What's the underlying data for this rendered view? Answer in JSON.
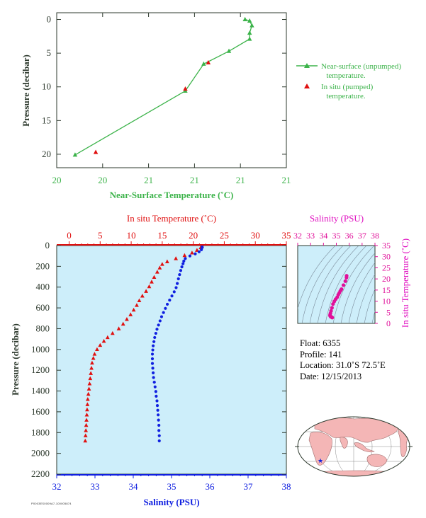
{
  "colors": {
    "green": "#3cb34a",
    "red": "#e01010",
    "blue": "#1020e0",
    "magenta": "#e0109a",
    "axis_dark": "#2e3a2e",
    "plot_bg": "#cdeefa",
    "land": "#f4b6b6",
    "ocean": "#ffffff"
  },
  "chart_data": [
    {
      "id": "near_surface",
      "type": "line",
      "xlabel": "Near-Surface Temperature (˚C)",
      "ylabel": "Pressure (decibar)",
      "xlim": [
        20.0,
        21.0
      ],
      "ylim": [
        22,
        -1
      ],
      "y_inverted": true,
      "x_tick_labels": [
        "20",
        "20",
        "21",
        "21",
        "21",
        "21"
      ],
      "y_ticks": [
        0,
        5,
        10,
        15,
        20
      ],
      "legend_position": "right",
      "series": [
        {
          "name": "Near-surface (unpumped) temperature.",
          "marker": "triangle",
          "line": true,
          "color": "green",
          "points": [
            [
              20.82,
              0.0
            ],
            [
              20.84,
              0.2
            ],
            [
              20.85,
              0.9
            ],
            [
              20.84,
              2.0
            ],
            [
              20.84,
              2.9
            ],
            [
              20.75,
              4.7
            ],
            [
              20.64,
              6.6
            ],
            [
              20.56,
              10.6
            ],
            [
              20.08,
              20.1
            ]
          ]
        },
        {
          "name": "In situ (pumped) temperature.",
          "marker": "triangle",
          "line": false,
          "color": "red",
          "points": [
            [
              20.66,
              6.4
            ],
            [
              20.56,
              10.3
            ],
            [
              20.17,
              19.7
            ]
          ]
        }
      ]
    },
    {
      "id": "profile",
      "type": "scatter",
      "ylabel": "Pressure (decibar)",
      "ylim": [
        2200,
        0
      ],
      "y_inverted": true,
      "y_ticks": [
        0,
        200,
        400,
        600,
        800,
        1000,
        1200,
        1400,
        1600,
        1800,
        2000,
        2200
      ],
      "top_axis": {
        "label": "In situ Temperature (˚C)",
        "range": [
          -2,
          35
        ],
        "ticks": [
          0,
          5,
          10,
          15,
          20,
          25,
          30,
          35
        ],
        "color": "red"
      },
      "bottom_axis": {
        "label": "Salinity (PSU)",
        "range": [
          32,
          38
        ],
        "ticks": [
          32,
          33,
          34,
          35,
          36,
          37,
          38
        ],
        "color": "blue"
      },
      "series": [
        {
          "name": "In situ Temperature",
          "axis": "top",
          "marker": "triangle",
          "color": "red",
          "points": [
            [
              21.4,
              5
            ],
            [
              21.2,
              20
            ],
            [
              20.6,
              45
            ],
            [
              19.8,
              70
            ],
            [
              18.6,
              95
            ],
            [
              17.2,
              125
            ],
            [
              15.8,
              155
            ],
            [
              15.0,
              180
            ],
            [
              14.6,
              215
            ],
            [
              14.2,
              255
            ],
            [
              13.7,
              305
            ],
            [
              13.3,
              350
            ],
            [
              12.9,
              395
            ],
            [
              12.4,
              440
            ],
            [
              11.8,
              485
            ],
            [
              11.3,
              530
            ],
            [
              10.9,
              575
            ],
            [
              10.4,
              620
            ],
            [
              9.9,
              665
            ],
            [
              9.3,
              710
            ],
            [
              8.7,
              755
            ],
            [
              8.0,
              800
            ],
            [
              7.0,
              845
            ],
            [
              6.2,
              885
            ],
            [
              5.6,
              920
            ],
            [
              5.0,
              960
            ],
            [
              4.5,
              1000
            ],
            [
              4.1,
              1045
            ],
            [
              3.9,
              1085
            ],
            [
              3.7,
              1130
            ],
            [
              3.6,
              1180
            ],
            [
              3.5,
              1230
            ],
            [
              3.4,
              1280
            ],
            [
              3.3,
              1330
            ],
            [
              3.2,
              1380
            ],
            [
              3.1,
              1430
            ],
            [
              3.0,
              1480
            ],
            [
              2.95,
              1530
            ],
            [
              2.9,
              1580
            ],
            [
              2.85,
              1630
            ],
            [
              2.8,
              1680
            ],
            [
              2.75,
              1730
            ],
            [
              2.7,
              1780
            ],
            [
              2.65,
              1830
            ],
            [
              2.6,
              1880
            ]
          ]
        },
        {
          "name": "Salinity",
          "axis": "bottom",
          "marker": "dot",
          "color": "blue",
          "points": [
            [
              35.8,
              5
            ],
            [
              35.8,
              20
            ],
            [
              35.78,
              40
            ],
            [
              35.72,
              60
            ],
            [
              35.62,
              80
            ],
            [
              35.48,
              100
            ],
            [
              35.36,
              125
            ],
            [
              35.32,
              150
            ],
            [
              35.3,
              175
            ],
            [
              35.27,
              205
            ],
            [
              35.24,
              240
            ],
            [
              35.21,
              280
            ],
            [
              35.18,
              320
            ],
            [
              35.15,
              365
            ],
            [
              35.12,
              405
            ],
            [
              35.07,
              445
            ],
            [
              35.01,
              485
            ],
            [
              34.95,
              525
            ],
            [
              34.89,
              565
            ],
            [
              34.84,
              605
            ],
            [
              34.79,
              645
            ],
            [
              34.74,
              685
            ],
            [
              34.7,
              725
            ],
            [
              34.66,
              765
            ],
            [
              34.62,
              805
            ],
            [
              34.59,
              845
            ],
            [
              34.56,
              885
            ],
            [
              34.54,
              925
            ],
            [
              34.52,
              965
            ],
            [
              34.51,
              1005
            ],
            [
              34.5,
              1045
            ],
            [
              34.5,
              1090
            ],
            [
              34.5,
              1135
            ],
            [
              34.51,
              1180
            ],
            [
              34.52,
              1225
            ],
            [
              34.53,
              1270
            ],
            [
              34.55,
              1315
            ],
            [
              34.57,
              1360
            ],
            [
              34.59,
              1405
            ],
            [
              34.6,
              1450
            ],
            [
              34.62,
              1495
            ],
            [
              34.63,
              1540
            ],
            [
              34.64,
              1585
            ],
            [
              34.65,
              1630
            ],
            [
              34.66,
              1680
            ],
            [
              34.67,
              1730
            ],
            [
              34.67,
              1780
            ],
            [
              34.68,
              1830
            ],
            [
              34.68,
              1880
            ]
          ]
        }
      ]
    },
    {
      "id": "ts_diagram",
      "type": "scatter",
      "xlabel": "Salinity (PSU)",
      "ylabel": "In situ Temperature (˚C)",
      "xlim": [
        32,
        38
      ],
      "ylim": [
        0,
        35
      ],
      "x_ticks": [
        32,
        33,
        34,
        35,
        36,
        37,
        38
      ],
      "y_ticks": [
        0,
        5,
        10,
        15,
        20,
        25,
        30,
        35
      ],
      "density_contours": true,
      "series": [
        {
          "name": "T-S",
          "color": "magenta",
          "points": [
            [
              35.8,
              21.4
            ],
            [
              35.79,
              20.6
            ],
            [
              35.7,
              19.0
            ],
            [
              35.55,
              17.2
            ],
            [
              35.4,
              15.4
            ],
            [
              35.31,
              14.6
            ],
            [
              35.23,
              13.7
            ],
            [
              35.15,
              12.9
            ],
            [
              35.07,
              11.8
            ],
            [
              34.95,
              10.9
            ],
            [
              34.84,
              9.9
            ],
            [
              34.74,
              8.7
            ],
            [
              34.66,
              7.0
            ],
            [
              34.59,
              5.6
            ],
            [
              34.54,
              4.5
            ],
            [
              34.51,
              3.7
            ],
            [
              34.52,
              3.4
            ],
            [
              34.55,
              3.1
            ],
            [
              34.6,
              2.95
            ],
            [
              34.64,
              2.8
            ],
            [
              34.67,
              2.7
            ],
            [
              34.68,
              2.6
            ]
          ]
        }
      ]
    }
  ],
  "info": {
    "float": "Float:  6355",
    "profile": "Profile:  141",
    "location": "Location:  31.0˚S  72.5˚E",
    "date": "Date:  12/15/2013"
  },
  "map": {
    "marker": "float-position-star",
    "position": {
      "lon": 72.5,
      "lat": -31.0
    }
  },
  "footer_code": "P0003ES0009A7-100005874"
}
